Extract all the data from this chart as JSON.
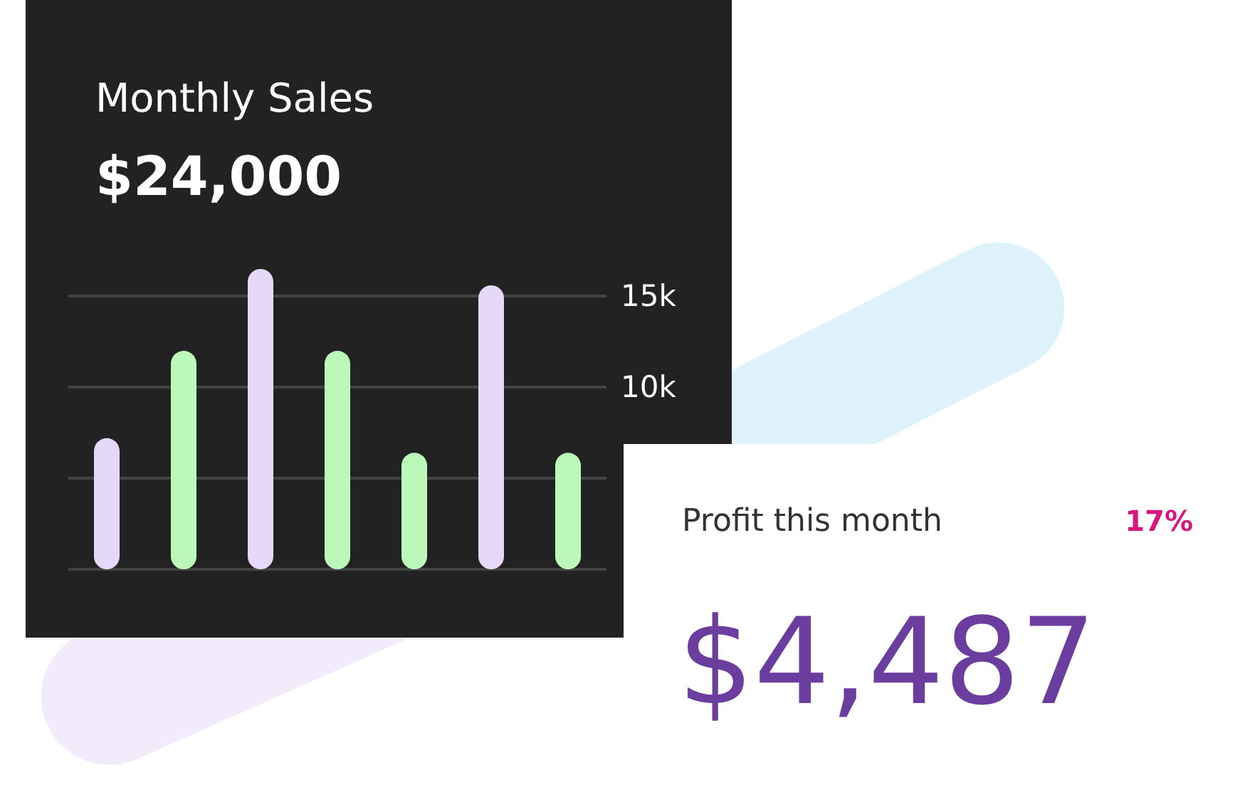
{
  "chart_data": [
    {
      "type": "bar",
      "title": "Monthly Sales",
      "subtitle": "$24,000",
      "categories": [
        null,
        null,
        null,
        null,
        null,
        null,
        null
      ],
      "values": [
        7200,
        12000,
        16500,
        12000,
        6400,
        15600,
        6400
      ],
      "colors": [
        "#e6d8f8",
        "#bdf8bb",
        "#e6d8f8",
        "#bdf8bb",
        "#bdf8bb",
        "#e6d8f8",
        "#bdf8bb"
      ],
      "ylim": [
        0,
        19000
      ],
      "yticks": [
        {
          "value": 0,
          "label": null
        },
        {
          "value": 5000,
          "label": null
        },
        {
          "value": 10000,
          "label": "10k"
        },
        {
          "value": 15000,
          "label": "15k"
        }
      ],
      "grid": "y"
    },
    {
      "type": "other",
      "title": "Profit this month",
      "annotations": [
        "17%",
        "$4,487"
      ]
    }
  ]
}
